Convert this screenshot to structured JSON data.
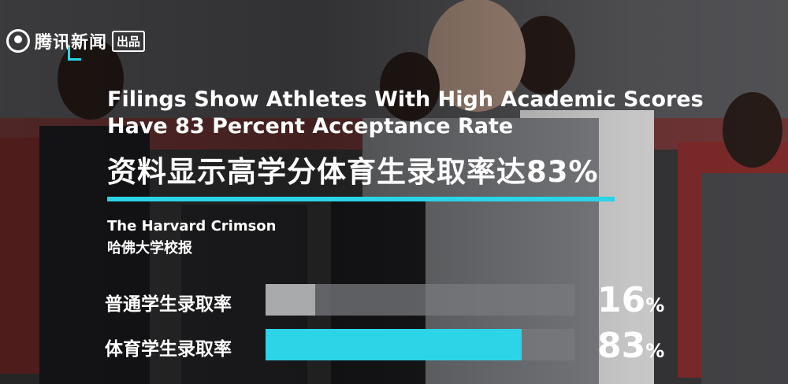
{
  "logo": {
    "brand": "腾讯新闻",
    "badge": "出品",
    "icon": "tencent-news-logo-icon"
  },
  "title": {
    "en": "Filings Show Athletes With High Academic Scores Have 83 Percent Acceptance Rate",
    "zh": "资料显示高学分体育生录取率达83%"
  },
  "source": {
    "en": "The Harvard Crimson",
    "zh": "哈佛大学校报"
  },
  "colors": {
    "accent": "#2bd4e7",
    "regular_bar": "#a8aaac",
    "track": "#787a7d"
  },
  "chart_data": {
    "type": "bar",
    "orientation": "horizontal",
    "title": "资料显示高学分体育生录取率达83%",
    "categories": [
      "普通学生录取率",
      "体育学生录取率"
    ],
    "values": [
      16,
      83
    ],
    "unit": "%",
    "xlim": [
      0,
      100
    ]
  }
}
